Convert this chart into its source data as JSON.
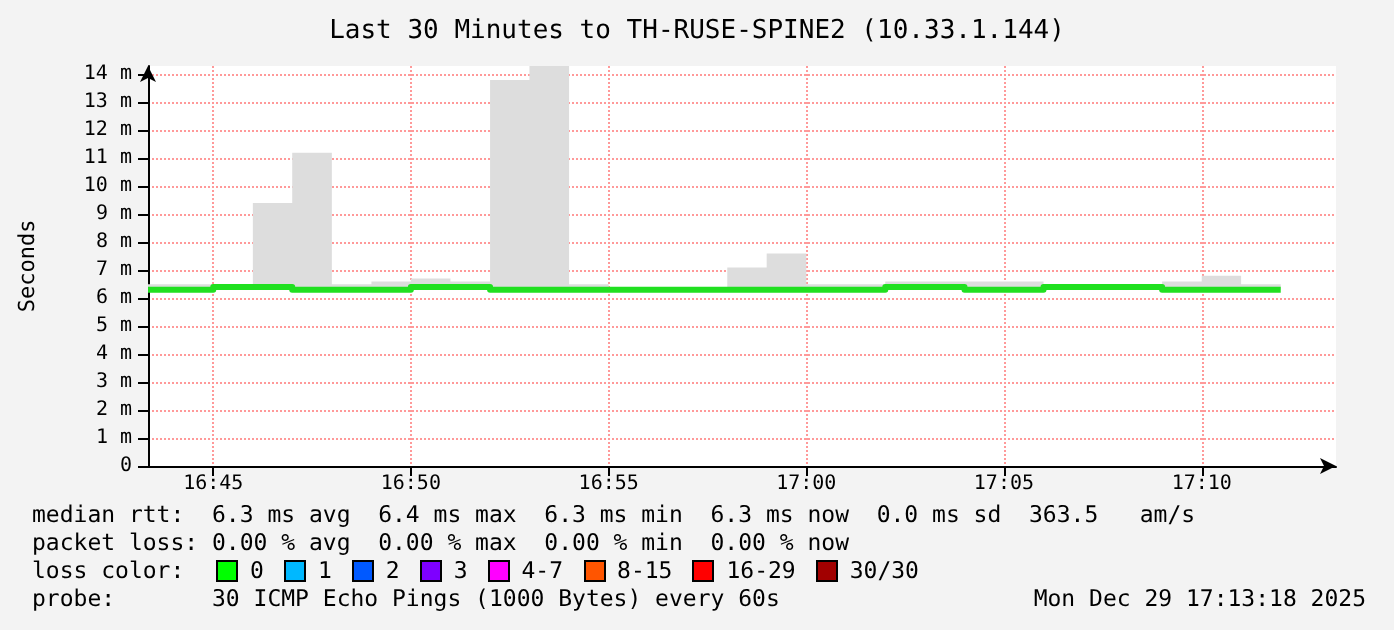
{
  "chart_data": {
    "type": "step",
    "title": "Last 30 Minutes to TH-RUSE-SPINE2 (10.33.1.144)",
    "ylabel": "Seconds",
    "x": [
      16.7225,
      16.7333,
      16.75,
      16.7667,
      16.7833,
      16.8,
      16.8167,
      16.8333,
      16.85,
      16.8667,
      16.8833,
      16.9,
      16.9167,
      16.9333,
      16.95,
      16.9667,
      16.9833,
      17,
      17.0167,
      17.0333,
      17.05,
      17.0667,
      17.0833,
      17.1,
      17.1167,
      17.1333,
      17.15,
      17.1667,
      17.1833,
      17.2
    ],
    "series": [
      {
        "color": "#20e020",
        "values": [
          6.3,
          6.3,
          6.3,
          6.4,
          6.4,
          6.3,
          6.3,
          6.3,
          6.4,
          6.4,
          6.3,
          6.3,
          6.3,
          6.3,
          6.3,
          6.3,
          6.3,
          6.3,
          6.3,
          6.3,
          6.4,
          6.4,
          6.3,
          6.3,
          6.4,
          6.4,
          6.4,
          6.3,
          6.3,
          6.3
        ],
        "lower": [
          6.3,
          6.3,
          6.3,
          6.3,
          6.3,
          6.3,
          6.3,
          6.3,
          6.3,
          6.3,
          6.3,
          6.3,
          6.3,
          6.3,
          6.3,
          6.3,
          6.3,
          6.3,
          6.3,
          6.3,
          6.3,
          6.3,
          6.3,
          6.3,
          6.3,
          6.3,
          6.3,
          6.3,
          6.3,
          6.3
        ],
        "upper": [
          6.5,
          6.5,
          6.5,
          9.4,
          11.2,
          6.5,
          6.6,
          6.7,
          6.6,
          13.8,
          14.3,
          6.5,
          6.4,
          6.4,
          6.4,
          7.1,
          7.6,
          6.5,
          6.5,
          6.6,
          6.6,
          6.6,
          6.6,
          6.5,
          6.5,
          6.5,
          6.6,
          6.8,
          6.5,
          6.5
        ]
      }
    ],
    "xlim": [
      16.7225,
      17.2233
    ],
    "xticks": [
      {
        "value": 16.75,
        "label": "16:45"
      },
      {
        "value": 16.8333,
        "label": "16:50"
      },
      {
        "value": 16.9167,
        "label": "16:55"
      },
      {
        "value": 17,
        "label": "17:00"
      },
      {
        "value": 17.0833,
        "label": "17:05"
      },
      {
        "value": 17.1667,
        "label": "17:10"
      }
    ],
    "ylim": [
      0,
      14.3
    ],
    "yticks": [
      {
        "value": 0,
        "label": "0"
      },
      {
        "value": 1,
        "label": "1 m"
      },
      {
        "value": 2,
        "label": "2 m"
      },
      {
        "value": 3,
        "label": "3 m"
      },
      {
        "value": 4,
        "label": "4 m"
      },
      {
        "value": 5,
        "label": "5 m"
      },
      {
        "value": 6,
        "label": "6 m"
      },
      {
        "value": 7,
        "label": "7 m"
      },
      {
        "value": 8,
        "label": "8 m"
      },
      {
        "value": 9,
        "label": "9 m"
      },
      {
        "value": 10,
        "label": "10 m"
      },
      {
        "value": 11,
        "label": "11 m"
      },
      {
        "value": 12,
        "label": "12 m"
      },
      {
        "value": 13,
        "label": "13 m"
      },
      {
        "value": 14,
        "label": "14 m"
      }
    ],
    "grid": true,
    "annotations": [
      "median rtt:  6.3 ms avg  6.4 ms max  6.3 ms min  6.3 ms now  0.0 ms sd  363.5   am/s",
      "packet loss: 0.00 % avg  0.00 % max  0.00 % min  0.00 % now",
      "loss color:",
      "0",
      "1",
      "2",
      "3",
      "4-7",
      "8-15",
      "16-29",
      "30/30",
      "probe:       30 ICMP Echo Pings (1000 Bytes) every 60s",
      "Mon Dec 29 17:13:18 2025"
    ]
  }
}
